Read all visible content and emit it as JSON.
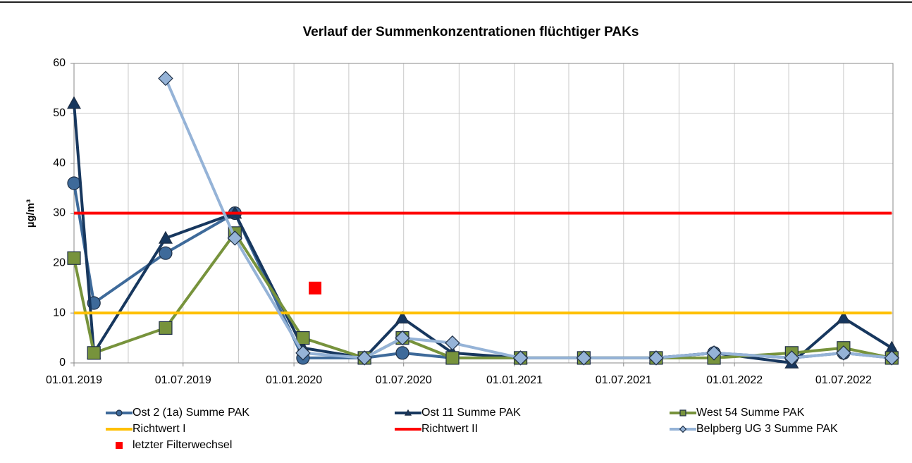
{
  "chart_data": {
    "type": "line",
    "title": "Verlauf der Summenkonzentrationen flüchtiger PAKs",
    "ylabel": "µg/m³",
    "x": [
      "01.01.2019",
      "03.02.2019",
      "02.06.2019",
      "25.09.2019",
      "16.01.2020",
      "27.04.2020",
      "29.06.2020",
      "20.09.2020",
      "11.01.2021",
      "26.04.2021",
      "24.08.2021",
      "28.11.2021",
      "06.04.2022",
      "01.07.2022",
      "19.09.2022"
    ],
    "xlim": [
      "01.01.2019",
      "21.09.2022"
    ],
    "xticks": [
      "01.01.2019",
      "01.07.2019",
      "01.01.2020",
      "01.07.2020",
      "01.01.2021",
      "01.07.2021",
      "01.01.2022",
      "01.07.2022"
    ],
    "xgrid_minor": [
      "01.04.2019",
      "01.10.2019",
      "01.04.2020",
      "01.10.2020",
      "01.04.2021",
      "01.10.2021",
      "01.04.2022"
    ],
    "ylim": [
      0,
      60
    ],
    "yticks": [
      0,
      10,
      20,
      30,
      40,
      50,
      60
    ],
    "grid": true,
    "series": [
      {
        "name": "Ost 2 (1a) Summe PAK",
        "color": "#3e6a9a",
        "marker": "circle",
        "values": [
          36,
          12,
          22,
          30,
          1,
          1,
          2,
          1,
          1,
          1,
          1,
          2,
          1,
          2,
          1
        ]
      },
      {
        "name": "Ost 11 Summe PAK",
        "color": "#17375e",
        "marker": "triangle",
        "values": [
          52,
          2,
          25,
          30,
          3,
          1,
          9,
          2,
          1,
          1,
          1,
          2,
          0,
          9,
          3
        ]
      },
      {
        "name": "West 54 Summe PAK",
        "color": "#77933c",
        "marker": "square",
        "values": [
          21,
          2,
          7,
          26,
          5,
          1,
          5,
          1,
          1,
          1,
          1,
          1,
          2,
          3,
          1
        ]
      },
      {
        "name": "Richtwert I",
        "color": "#ffc000",
        "values": [
          10,
          10,
          10,
          10,
          10,
          10,
          10,
          10,
          10,
          10,
          10,
          10,
          10,
          10,
          10
        ]
      },
      {
        "name": "Richtwert II",
        "color": "#ff0000",
        "values": [
          30,
          30,
          30,
          30,
          30,
          30,
          30,
          30,
          30,
          30,
          30,
          30,
          30,
          30,
          30
        ]
      },
      {
        "name": "Belpberg UG 3 Summe PAK",
        "color": "#95b3d7",
        "marker": "diamond",
        "values": [
          null,
          null,
          57,
          25,
          2,
          1,
          5,
          4,
          1,
          1,
          1,
          2,
          1,
          2,
          1
        ]
      },
      {
        "name": "letzter Filterwechsel",
        "color": "#ff0000",
        "marker": "square",
        "line": false,
        "x": [
          "05.02.2020"
        ],
        "values": [
          15
        ]
      }
    ]
  }
}
